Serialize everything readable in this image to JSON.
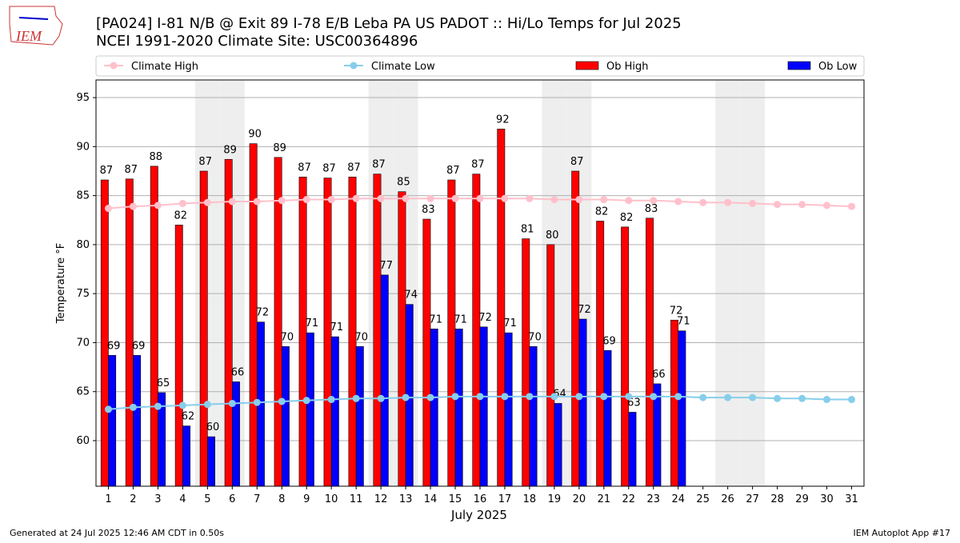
{
  "logo": "IEM",
  "chart_data": {
    "type": "bar",
    "title": "[PA024] I-81 N/B @ Exit 89 I-78 E/B Leba PA US  PADOT :: Hi/Lo Temps for Jul 2025",
    "subtitle": "NCEI 1991-2020 Climate Site: USC00364896",
    "x_label": "July 2025",
    "y_label": "Temperature °F",
    "categories": [
      "1",
      "2",
      "3",
      "4",
      "5",
      "6",
      "7",
      "8",
      "9",
      "10",
      "11",
      "12",
      "13",
      "14",
      "15",
      "16",
      "17",
      "18",
      "19",
      "20",
      "21",
      "22",
      "23",
      "24",
      "25",
      "26",
      "27",
      "28",
      "29",
      "30",
      "31"
    ],
    "shaded_days": [
      5,
      6,
      12,
      13,
      19,
      20,
      26,
      27
    ],
    "ylim": [
      55.35,
      96.8
    ],
    "yticks": [
      60,
      65,
      70,
      75,
      80,
      85,
      90,
      95
    ],
    "grid": true,
    "series": [
      {
        "name": "Climate High",
        "kind": "line",
        "color": "#ffc0cb",
        "values": [
          83.7,
          83.9,
          84.0,
          84.2,
          84.3,
          84.4,
          84.4,
          84.5,
          84.6,
          84.6,
          84.7,
          84.7,
          84.7,
          84.7,
          84.7,
          84.7,
          84.7,
          84.7,
          84.6,
          84.6,
          84.6,
          84.5,
          84.5,
          84.4,
          84.3,
          84.3,
          84.2,
          84.1,
          84.1,
          84.0,
          83.9
        ]
      },
      {
        "name": "Climate Low",
        "kind": "line",
        "color": "#87ceeb",
        "values": [
          63.2,
          63.4,
          63.5,
          63.6,
          63.7,
          63.8,
          63.9,
          64.0,
          64.1,
          64.2,
          64.3,
          64.3,
          64.4,
          64.4,
          64.5,
          64.5,
          64.5,
          64.5,
          64.5,
          64.5,
          64.5,
          64.5,
          64.5,
          64.5,
          64.4,
          64.4,
          64.4,
          64.3,
          64.3,
          64.2,
          64.2
        ]
      },
      {
        "name": "Ob High",
        "kind": "bar",
        "color": "#ff0000",
        "values": [
          86.6,
          86.7,
          88.0,
          82.0,
          87.5,
          88.7,
          90.3,
          88.9,
          86.9,
          86.8,
          86.9,
          87.2,
          85.4,
          82.6,
          86.6,
          87.2,
          91.8,
          80.6,
          80.0,
          87.5,
          82.4,
          81.8,
          82.7,
          72.3,
          null,
          null,
          null,
          null,
          null,
          null,
          null
        ],
        "value_labels": [
          "87",
          "87",
          "88",
          "82",
          "87",
          "89",
          "90",
          "89",
          "87",
          "87",
          "87",
          "87",
          "85",
          "83",
          "87",
          "87",
          "92",
          "81",
          "80",
          "87",
          "82",
          "82",
          "83",
          "72",
          null,
          null,
          null,
          null,
          null,
          null,
          null
        ]
      },
      {
        "name": "Ob Low",
        "kind": "bar",
        "color": "#0000ff",
        "values": [
          68.7,
          68.7,
          64.9,
          61.5,
          60.4,
          66.0,
          72.1,
          69.6,
          71.0,
          70.6,
          69.6,
          76.9,
          73.9,
          71.4,
          71.4,
          71.6,
          71.0,
          69.6,
          63.8,
          72.4,
          69.2,
          62.9,
          65.8,
          71.2,
          null,
          null,
          null,
          null,
          null,
          null,
          null
        ],
        "value_labels": [
          "69",
          "69",
          "65",
          "62",
          "60",
          "66",
          "72",
          "70",
          "71",
          "71",
          "70",
          "77",
          "74",
          "71",
          "71",
          "72",
          "71",
          "70",
          "64",
          "72",
          "69",
          "63",
          "66",
          "71",
          null,
          null,
          null,
          null,
          null,
          null,
          null
        ]
      }
    ],
    "footer_left": "Generated at 24 Jul 2025 12:46 AM CDT in 0.50s",
    "footer_right": "IEM Autoplot App #17"
  }
}
